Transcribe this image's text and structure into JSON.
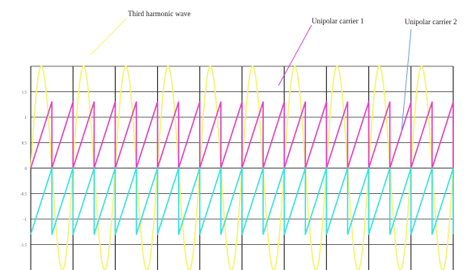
{
  "chart_data": {
    "type": "line",
    "title": "",
    "xlabel": "",
    "ylabel": "",
    "ylim": [
      -2,
      2
    ],
    "y_tick_labels": [
      "1.5",
      "1",
      "0.5",
      "0",
      "-0.5",
      "-1",
      "-1.5"
    ],
    "grid": true,
    "carrier_periods": 20,
    "harmonic_periods": 10,
    "annotations": [
      {
        "id": "third",
        "text": "Third harmonic wave",
        "target_series": "third"
      },
      {
        "id": "carrier1",
        "text": "Unipolar carrier 1",
        "target_series": "carrier1"
      },
      {
        "id": "carrier2",
        "text": "Unipolar carrier 2",
        "target_series": "carrier2"
      }
    ],
    "series": [
      {
        "key": "third",
        "shape": "sine",
        "amplitude": 2.0,
        "color": "#f4f46a"
      },
      {
        "key": "carrier1",
        "shape": "sawtooth",
        "min": 0,
        "max": 1.3,
        "color": "#e040c0"
      },
      {
        "key": "carrier2",
        "shape": "sawtooth",
        "min": -1.3,
        "max": 0,
        "color": "#36e0e0"
      }
    ],
    "colors": {
      "grid": "#333333",
      "third_harmonic": "#f4f46a",
      "carrier1": "#e040c0",
      "carrier2": "#36e0e0"
    }
  }
}
